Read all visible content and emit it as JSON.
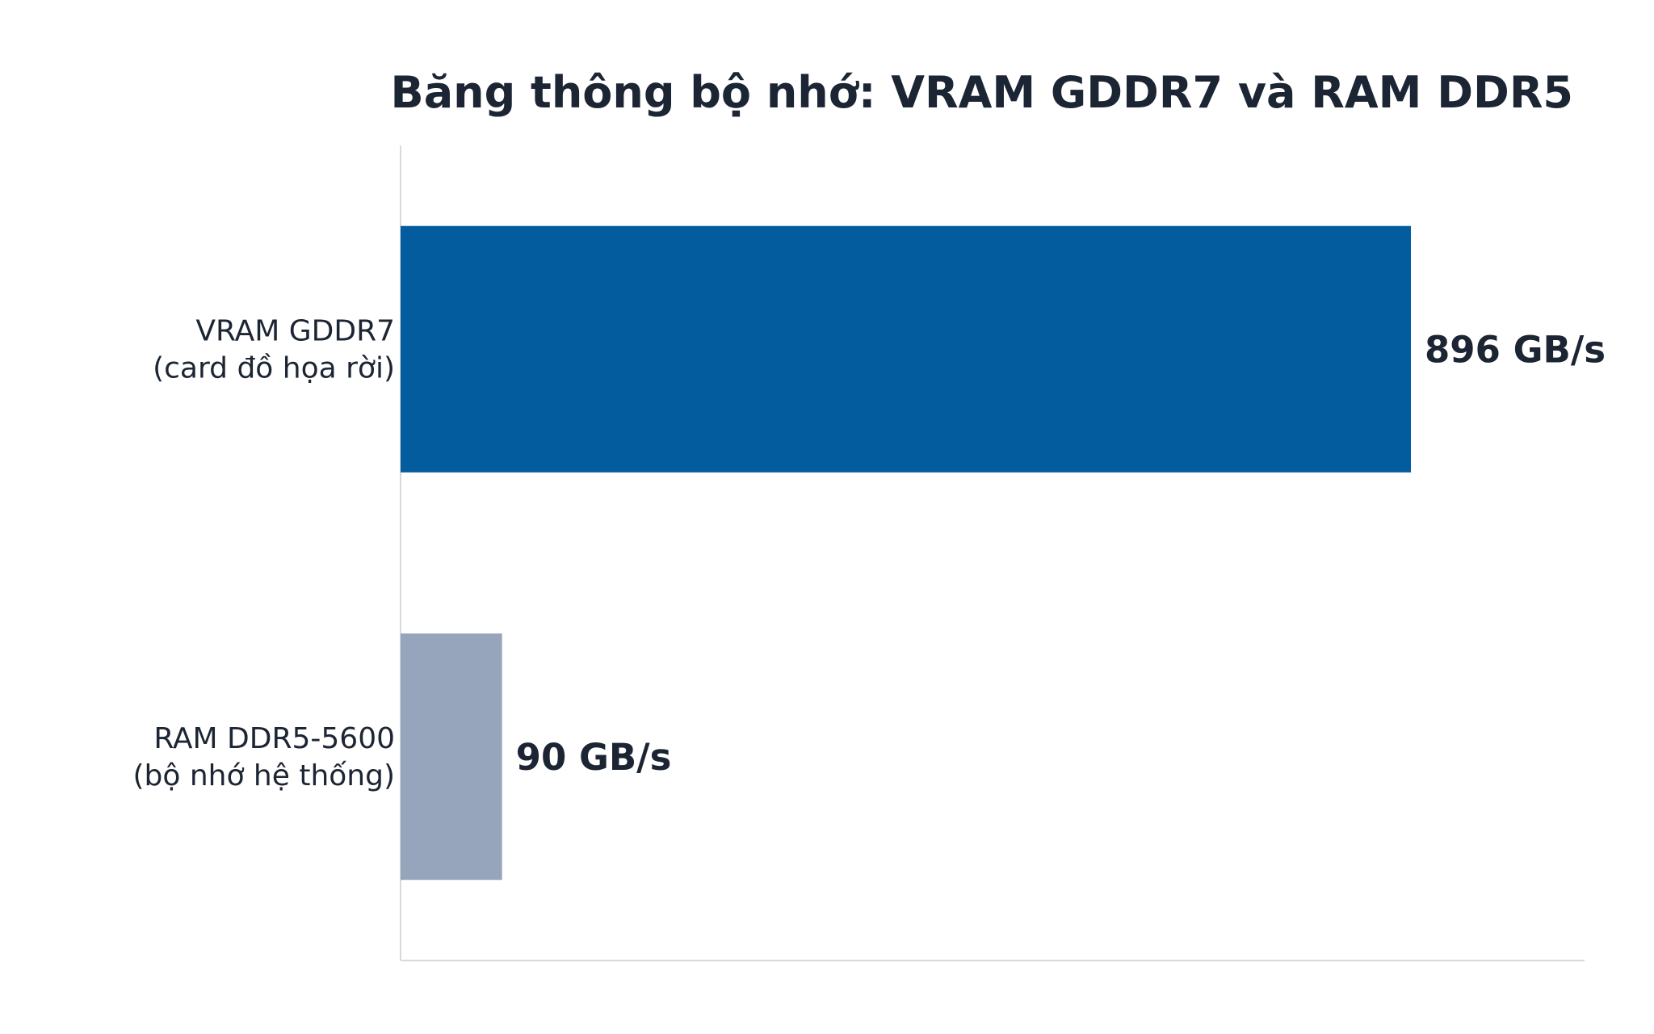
{
  "chart_data": {
    "type": "bar",
    "orientation": "horizontal",
    "title": "Băng thông bộ nhớ: VRAM GDDR7 và RAM DDR5",
    "xlabel": "",
    "ylabel": "",
    "xlim": [
      0,
      1050
    ],
    "grid": false,
    "categories": [
      [
        "VRAM GDDR7",
        "(card đồ họa rời)"
      ],
      [
        "RAM DDR5-5600",
        "(bộ nhớ hệ thống)"
      ]
    ],
    "values": [
      896,
      90
    ],
    "value_labels": [
      "896 GB/s",
      "90 GB/s"
    ],
    "colors": [
      "#025c9e",
      "#96a5bc"
    ]
  }
}
